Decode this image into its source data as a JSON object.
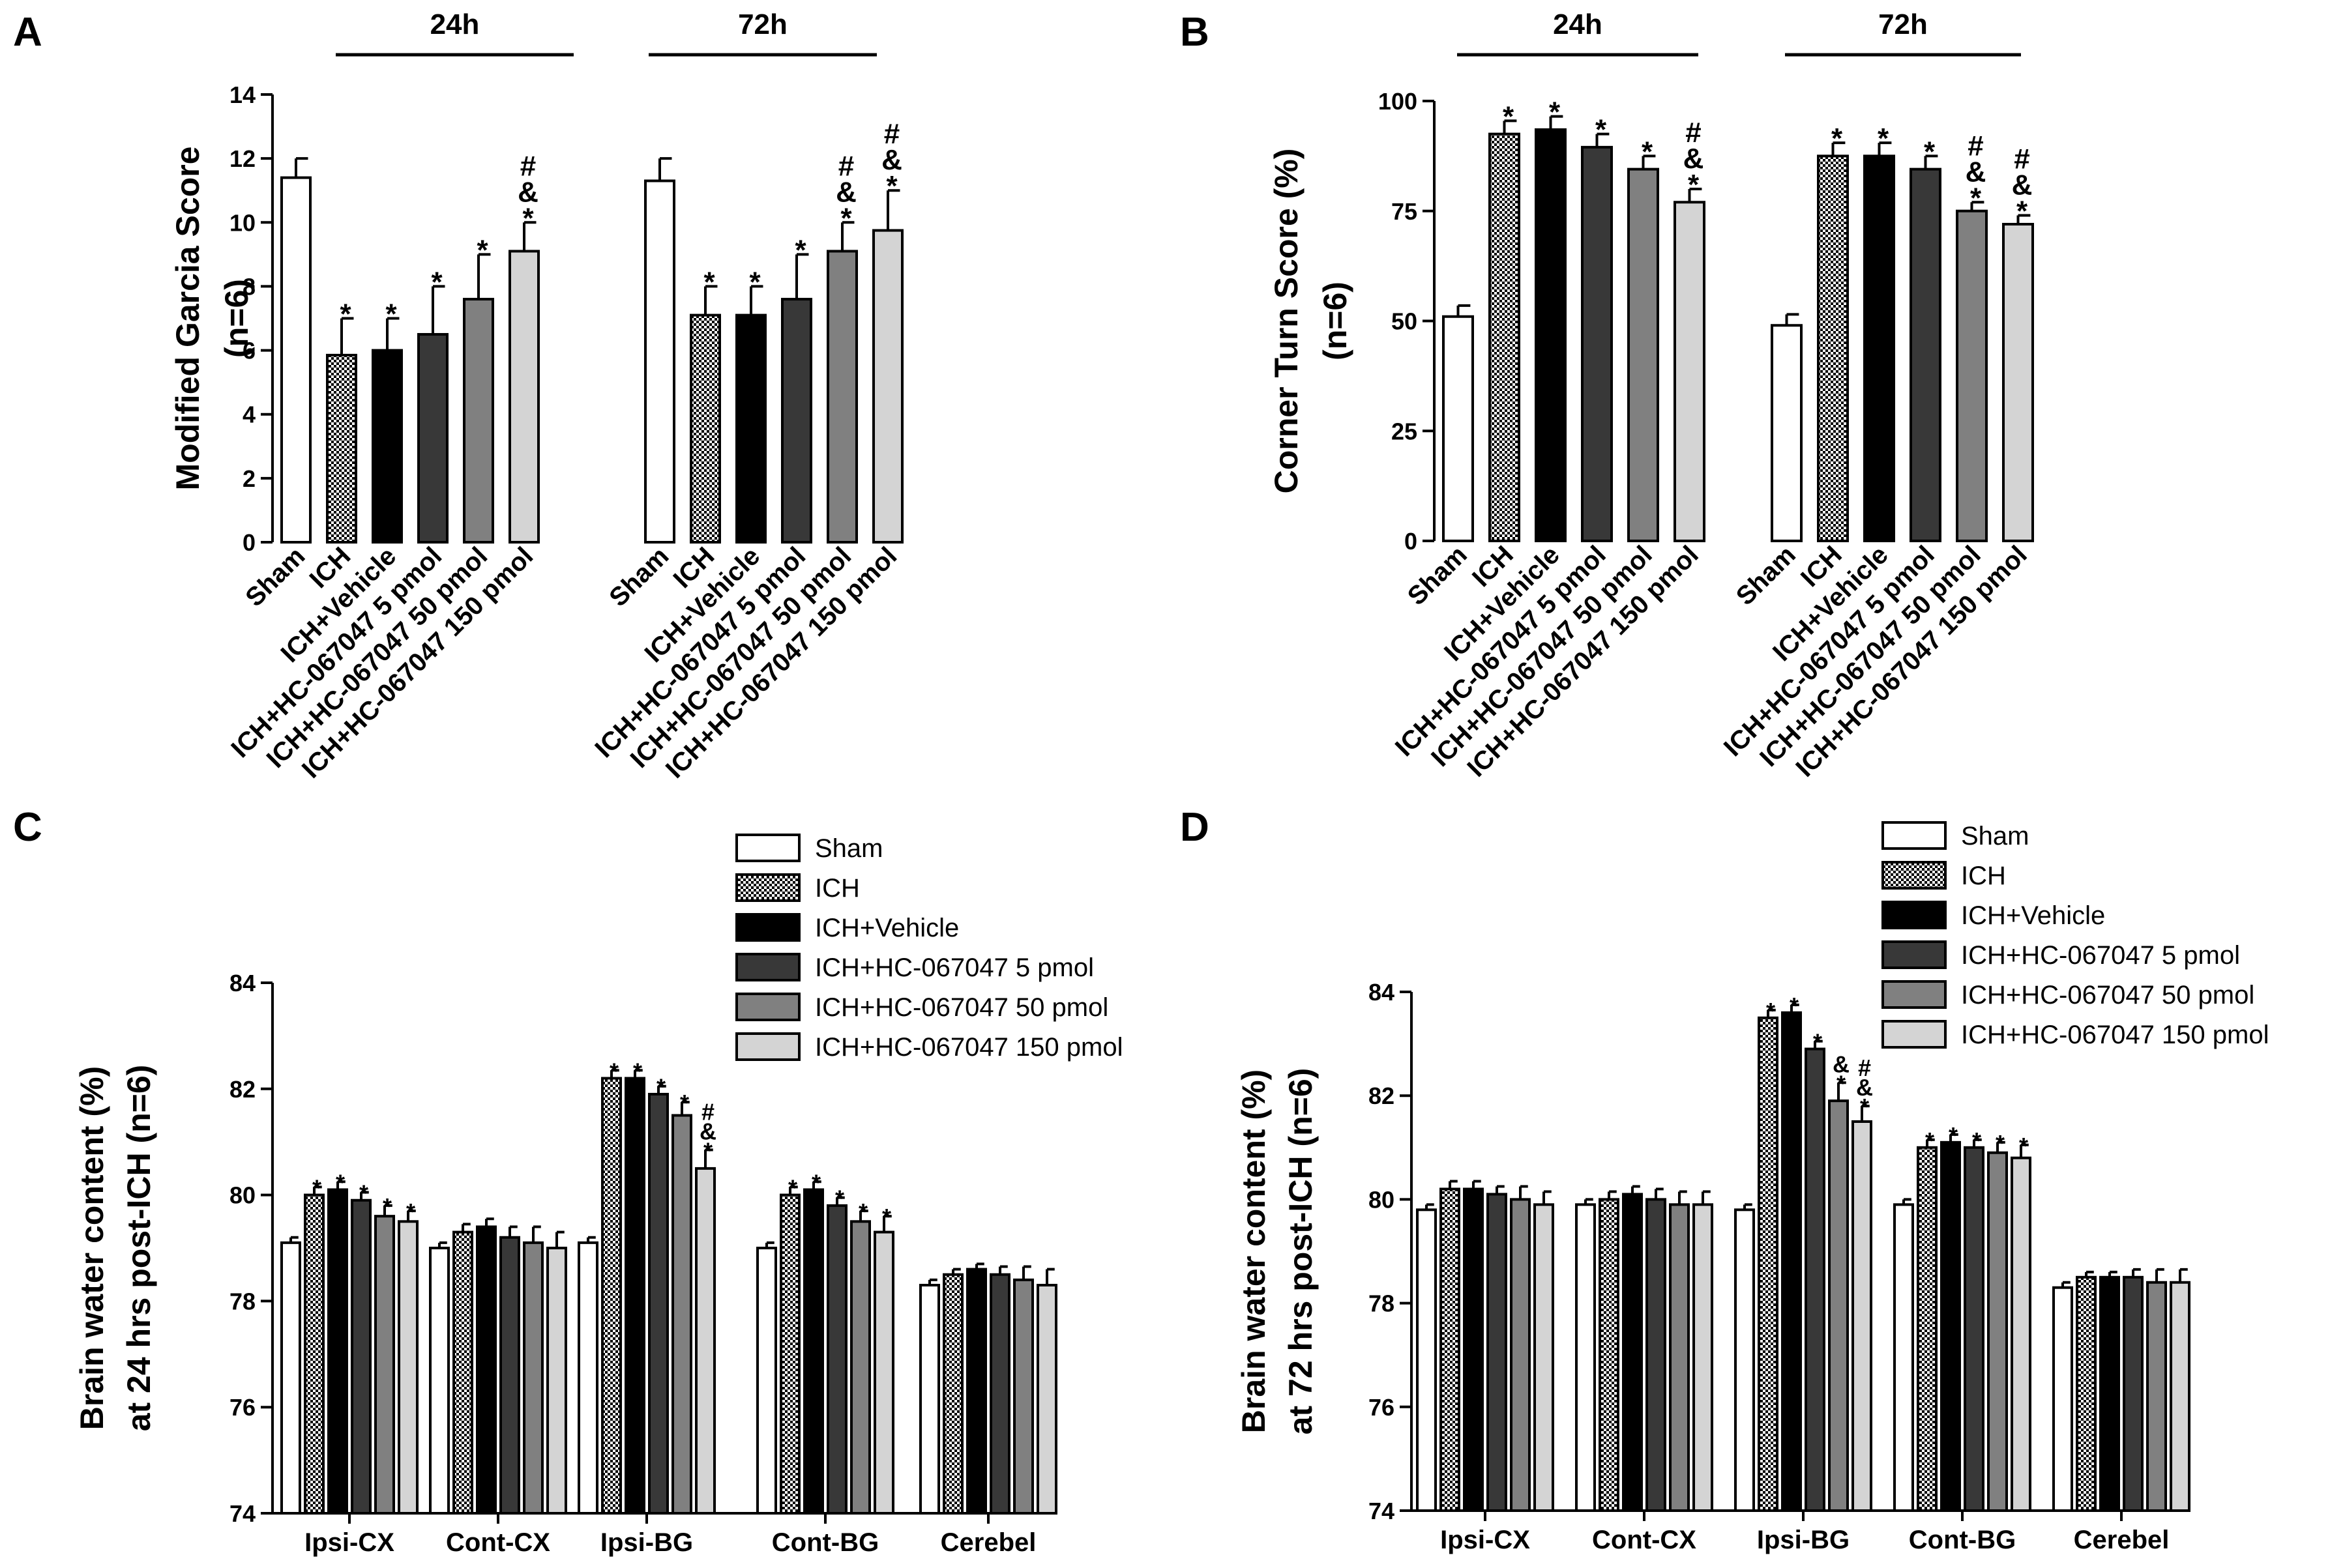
{
  "colors": {
    "sham": "#ffffff",
    "ich": "#d8d8d8",
    "vehicle": "#000000",
    "hc5": "#383838",
    "hc50": "#808080",
    "hc150": "#d4d4d4",
    "axis": "#000000"
  },
  "chart_data": [
    {
      "panel": "A",
      "type": "bar",
      "ylabel_line1": "Modified Garcia Score",
      "ylabel_line2": "(n=6)",
      "ylim": [
        0,
        14
      ],
      "yticks": [
        0,
        2,
        4,
        6,
        8,
        10,
        12,
        14
      ],
      "groups": [
        {
          "label": "24h",
          "categories": [
            "Sham",
            "ICH",
            "ICH+Vehicle",
            "ICH+HC-067047 5 pmol",
            "ICH+HC-067047 50 pmol",
            "ICH+HC-067047 150 pmol"
          ],
          "values": [
            11.4,
            5.85,
            6.0,
            6.5,
            7.6,
            9.1
          ],
          "errors": [
            0.6,
            1.15,
            1.0,
            1.5,
            1.4,
            0.9
          ],
          "annotations": [
            "",
            "*",
            "*",
            "*",
            "*",
            "#&*"
          ]
        },
        {
          "label": "72h",
          "categories": [
            "Sham",
            "ICH",
            "ICH+Vehicle",
            "ICH+HC-067047 5 pmol",
            "ICH+HC-067047 50 pmol",
            "ICH+HC-067047 150 pmol"
          ],
          "values": [
            11.3,
            7.1,
            7.1,
            7.6,
            9.1,
            9.75
          ],
          "errors": [
            0.7,
            0.9,
            0.9,
            1.4,
            0.9,
            1.25
          ],
          "annotations": [
            "",
            "*",
            "*",
            "*",
            "#&*",
            "#&*"
          ]
        }
      ]
    },
    {
      "panel": "B",
      "type": "bar",
      "ylabel_line1": "Corner Turn Score (%)",
      "ylabel_line2": "(n=6)",
      "ylim": [
        0,
        100
      ],
      "yticks": [
        0,
        25,
        50,
        75,
        100
      ],
      "groups": [
        {
          "label": "24h",
          "categories": [
            "Sham",
            "ICH",
            "ICH+Vehicle",
            "ICH+HC-067047 5 pmol",
            "ICH+HC-067047 50 pmol",
            "ICH+HC-067047 150 pmol"
          ],
          "values": [
            51,
            92.5,
            93.5,
            89.5,
            84.5,
            77
          ],
          "errors": [
            2.5,
            3,
            3,
            3,
            3,
            3
          ],
          "annotations": [
            "",
            "*",
            "*",
            "*",
            "*",
            "#&*"
          ]
        },
        {
          "label": "72h",
          "categories": [
            "Sham",
            "ICH",
            "ICH+Vehicle",
            "ICH+HC-067047 5 pmol",
            "ICH+HC-067047 50 pmol",
            "ICH+HC-067047 150 pmol"
          ],
          "values": [
            49,
            87.5,
            87.5,
            84.5,
            75,
            72
          ],
          "errors": [
            2.5,
            3,
            3,
            3,
            2,
            2
          ],
          "annotations": [
            "",
            "*",
            "*",
            "*",
            "#&*",
            "#&*"
          ]
        }
      ]
    },
    {
      "panel": "C",
      "type": "bar",
      "ylabel_line1": "Brain water content (%)",
      "ylabel_line2": "at 24 hrs post-ICH (n=6)",
      "ylim": [
        74,
        84
      ],
      "yticks": [
        74,
        76,
        78,
        80,
        82,
        84
      ],
      "legend": [
        "Sham",
        "ICH",
        "ICH+Vehicle",
        "ICH+HC-067047 5 pmol",
        "ICH+HC-067047 50 pmol",
        "ICH+HC-067047 150 pmol"
      ],
      "categories": [
        "Ipsi-CX",
        "Cont-CX",
        "Ipsi-BG",
        "Cont-BG",
        "Cerebel"
      ],
      "series": [
        {
          "name": "Sham",
          "values": [
            79.1,
            79.0,
            79.1,
            79.0,
            78.3
          ],
          "errors": [
            0.1,
            0.1,
            0.1,
            0.1,
            0.1
          ]
        },
        {
          "name": "ICH",
          "values": [
            80.0,
            79.3,
            82.2,
            80.0,
            78.5
          ],
          "errors": [
            0.15,
            0.15,
            0.15,
            0.15,
            0.1
          ]
        },
        {
          "name": "ICH+Vehicle",
          "values": [
            80.1,
            79.4,
            82.2,
            80.1,
            78.6
          ],
          "errors": [
            0.15,
            0.15,
            0.15,
            0.15,
            0.1
          ]
        },
        {
          "name": "ICH+HC-067047 5 pmol",
          "values": [
            79.9,
            79.2,
            81.9,
            79.8,
            78.5
          ],
          "errors": [
            0.15,
            0.2,
            0.15,
            0.15,
            0.15
          ]
        },
        {
          "name": "ICH+HC-067047 50 pmol",
          "values": [
            79.6,
            79.1,
            81.5,
            79.5,
            78.4
          ],
          "errors": [
            0.2,
            0.3,
            0.25,
            0.2,
            0.25
          ]
        },
        {
          "name": "ICH+HC-067047 150 pmol",
          "values": [
            79.5,
            79.0,
            80.5,
            79.3,
            78.3
          ],
          "errors": [
            0.2,
            0.3,
            0.35,
            0.3,
            0.3
          ]
        }
      ],
      "annotations": [
        [
          "",
          "*",
          "*",
          "*",
          "*",
          "*"
        ],
        [
          "",
          "",
          "",
          "",
          "",
          ""
        ],
        [
          "",
          "*",
          "*",
          "*",
          "*",
          "#&*"
        ],
        [
          "",
          "*",
          "*",
          "*",
          "*",
          "*"
        ],
        [
          "",
          "",
          "",
          "",
          "",
          ""
        ]
      ]
    },
    {
      "panel": "D",
      "type": "bar",
      "ylabel_line1": "Brain water content (%)",
      "ylabel_line2": "at 72 hrs post-ICH (n=6)",
      "ylim": [
        74,
        84
      ],
      "yticks": [
        74,
        76,
        78,
        80,
        82,
        84
      ],
      "legend": [
        "Sham",
        "ICH",
        "ICH+Vehicle",
        "ICH+HC-067047 5 pmol",
        "ICH+HC-067047 50 pmol",
        "ICH+HC-067047 150 pmol"
      ],
      "categories": [
        "Ipsi-CX",
        "Cont-CX",
        "Ipsi-BG",
        "Cont-BG",
        "Cerebel"
      ],
      "series": [
        {
          "name": "Sham",
          "values": [
            79.8,
            79.9,
            79.8,
            79.9,
            78.3
          ],
          "errors": [
            0.1,
            0.1,
            0.1,
            0.1,
            0.1
          ]
        },
        {
          "name": "ICH",
          "values": [
            80.2,
            80.0,
            83.5,
            81.0,
            78.5
          ],
          "errors": [
            0.15,
            0.15,
            0.15,
            0.15,
            0.1
          ]
        },
        {
          "name": "ICH+Vehicle",
          "values": [
            80.2,
            80.1,
            83.6,
            81.1,
            78.5
          ],
          "errors": [
            0.15,
            0.15,
            0.15,
            0.15,
            0.1
          ]
        },
        {
          "name": "ICH+HC-067047 5 pmol",
          "values": [
            80.1,
            80.0,
            82.9,
            81.0,
            78.5
          ],
          "errors": [
            0.15,
            0.2,
            0.15,
            0.15,
            0.15
          ]
        },
        {
          "name": "ICH+HC-067047 50 pmol",
          "values": [
            80.0,
            79.9,
            81.9,
            80.9,
            78.4
          ],
          "errors": [
            0.25,
            0.25,
            0.35,
            0.2,
            0.25
          ]
        },
        {
          "name": "ICH+HC-067047 150 pmol",
          "values": [
            79.9,
            79.9,
            81.5,
            80.8,
            78.4
          ],
          "errors": [
            0.25,
            0.25,
            0.3,
            0.25,
            0.25
          ]
        }
      ],
      "annotations": [
        [
          "",
          "",
          "",
          "",
          "",
          ""
        ],
        [
          "",
          "",
          "",
          "",
          "",
          ""
        ],
        [
          "",
          "*",
          "*",
          "*",
          "&*",
          "#&*"
        ],
        [
          "",
          "*",
          "*",
          "*",
          "*",
          "*"
        ],
        [
          "",
          "",
          "",
          "",
          "",
          ""
        ]
      ]
    }
  ]
}
